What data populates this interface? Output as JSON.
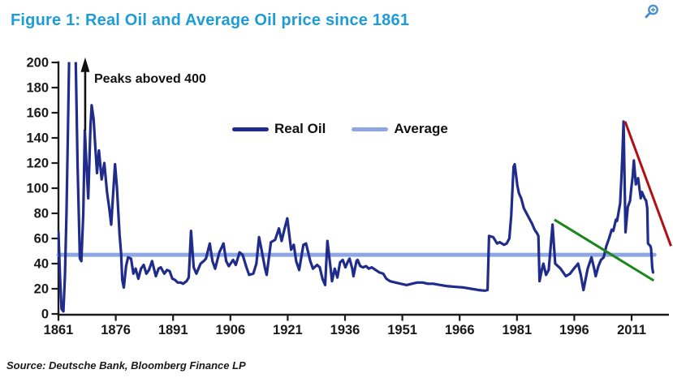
{
  "header": {
    "title": "Figure 1: Real Oil and Average Oil price since 1861"
  },
  "footer": {
    "source": "Source: Deutsche Bank, Bloomberg Finance LP"
  },
  "colors": {
    "title_blue": "#1E9CD8",
    "real_oil_navy": "#1F2C8B",
    "average_light_blue": "#8EA7E2",
    "trend_red": "#B11116",
    "trend_green": "#1D851D",
    "axis_black": "#1A1A1A",
    "zoom_icon_blue": "#4A90CC"
  },
  "chart_data": {
    "type": "line",
    "title": "Real Oil and Average Oil price since 1861",
    "xlabel": "",
    "ylabel": "",
    "x_axis": {
      "min": 1861,
      "max": 2020,
      "tick_step": 15,
      "ticks": [
        1861,
        1876,
        1891,
        1906,
        1921,
        1936,
        1951,
        1966,
        1981,
        1996,
        2011
      ]
    },
    "y_axis": {
      "min": 0,
      "max": 200,
      "tick_step": 20,
      "ticks": [
        0,
        20,
        40,
        60,
        80,
        100,
        120,
        140,
        160,
        180,
        200
      ]
    },
    "grid": false,
    "legend": {
      "position": "top-center",
      "entries": [
        {
          "label": "Real Oil",
          "color": "#1F2C8B"
        },
        {
          "label": "Average",
          "color": "#8EA7E2"
        }
      ]
    },
    "annotation": {
      "text": "Peaks aboved 400",
      "arrow": {
        "year": 1868,
        "from_value": 146,
        "to_value": 204
      }
    },
    "series": [
      {
        "name": "Real Oil",
        "type": "line",
        "color": "#1F2C8B",
        "clip_at_y_max": true,
        "points": [
          [
            1861,
            65
          ],
          [
            1861.4,
            30
          ],
          [
            1861.8,
            4
          ],
          [
            1862.3,
            2
          ],
          [
            1862.7,
            30
          ],
          [
            1863.1,
            80
          ],
          [
            1863.5,
            150
          ],
          [
            1863.8,
            205
          ],
          [
            1865.5,
            205
          ],
          [
            1866,
            120
          ],
          [
            1866.6,
            44
          ],
          [
            1867,
            42
          ],
          [
            1867.5,
            80
          ],
          [
            1867.9,
            146
          ],
          [
            1868.4,
            115
          ],
          [
            1868.8,
            92
          ],
          [
            1869.4,
            150
          ],
          [
            1869.7,
            166
          ],
          [
            1870.2,
            155
          ],
          [
            1870.7,
            130
          ],
          [
            1871.1,
            112
          ],
          [
            1871.6,
            130
          ],
          [
            1872.3,
            107
          ],
          [
            1873,
            120
          ],
          [
            1873.7,
            97
          ],
          [
            1874.3,
            84
          ],
          [
            1874.8,
            71
          ],
          [
            1875.3,
            95
          ],
          [
            1875.8,
            119
          ],
          [
            1876.3,
            101
          ],
          [
            1877,
            63
          ],
          [
            1877.4,
            48
          ],
          [
            1877.7,
            27
          ],
          [
            1878.1,
            21
          ],
          [
            1878.7,
            38
          ],
          [
            1879.2,
            45
          ],
          [
            1880,
            44
          ],
          [
            1880.6,
            32
          ],
          [
            1881.2,
            36
          ],
          [
            1881.9,
            28
          ],
          [
            1882.6,
            36
          ],
          [
            1883.3,
            39
          ],
          [
            1884,
            32
          ],
          [
            1884.7,
            35
          ],
          [
            1885.5,
            42
          ],
          [
            1886.5,
            30
          ],
          [
            1887.2,
            36
          ],
          [
            1887.8,
            37
          ],
          [
            1888.7,
            32
          ],
          [
            1889.4,
            35
          ],
          [
            1890.1,
            34
          ],
          [
            1890.8,
            28
          ],
          [
            1891.5,
            27
          ],
          [
            1892.2,
            25
          ],
          [
            1893,
            25
          ],
          [
            1893.6,
            24
          ],
          [
            1894.5,
            26
          ],
          [
            1895.1,
            29
          ],
          [
            1895.7,
            66
          ],
          [
            1896.4,
            37
          ],
          [
            1897.1,
            32
          ],
          [
            1898.2,
            40
          ],
          [
            1899,
            42
          ],
          [
            1899.6,
            44
          ],
          [
            1900.6,
            56
          ],
          [
            1901.3,
            42
          ],
          [
            1902,
            36
          ],
          [
            1903.1,
            49
          ],
          [
            1904.2,
            56
          ],
          [
            1904.9,
            42
          ],
          [
            1905.6,
            38
          ],
          [
            1906.7,
            43
          ],
          [
            1907.4,
            39
          ],
          [
            1908.4,
            49
          ],
          [
            1909.2,
            47
          ],
          [
            1910.2,
            37
          ],
          [
            1910.9,
            31
          ],
          [
            1912,
            32
          ],
          [
            1912.8,
            40
          ],
          [
            1913.5,
            61
          ],
          [
            1914.1,
            52
          ],
          [
            1915,
            37
          ],
          [
            1915.5,
            31
          ],
          [
            1916.6,
            57
          ],
          [
            1917.7,
            59
          ],
          [
            1918.7,
            68
          ],
          [
            1919.4,
            58
          ],
          [
            1920.2,
            68
          ],
          [
            1920.9,
            76
          ],
          [
            1921.9,
            51
          ],
          [
            1922.6,
            55
          ],
          [
            1923.2,
            42
          ],
          [
            1924,
            35
          ],
          [
            1925.1,
            55
          ],
          [
            1925.8,
            56
          ],
          [
            1926.9,
            42
          ],
          [
            1927.6,
            36
          ],
          [
            1928.7,
            39
          ],
          [
            1929.4,
            37
          ],
          [
            1930.1,
            28
          ],
          [
            1930.8,
            23
          ],
          [
            1931.4,
            58
          ],
          [
            1932.2,
            37
          ],
          [
            1932.6,
            26
          ],
          [
            1933.3,
            36
          ],
          [
            1934,
            29
          ],
          [
            1934.7,
            41
          ],
          [
            1935.4,
            43
          ],
          [
            1936.1,
            37
          ],
          [
            1936.8,
            42
          ],
          [
            1937.2,
            44
          ],
          [
            1937.9,
            36
          ],
          [
            1938.2,
            30
          ],
          [
            1939,
            42
          ],
          [
            1939.3,
            43
          ],
          [
            1940,
            38
          ],
          [
            1940.7,
            37
          ],
          [
            1941.5,
            38
          ],
          [
            1942.2,
            36
          ],
          [
            1943,
            37
          ],
          [
            1944,
            35
          ],
          [
            1945,
            33
          ],
          [
            1946,
            32
          ],
          [
            1946.8,
            28
          ],
          [
            1947.8,
            26
          ],
          [
            1949.2,
            25
          ],
          [
            1950.6,
            24
          ],
          [
            1952.1,
            23
          ],
          [
            1953.5,
            24
          ],
          [
            1954.9,
            25
          ],
          [
            1956.3,
            25
          ],
          [
            1957.7,
            24
          ],
          [
            1959.1,
            24
          ],
          [
            1961,
            23
          ],
          [
            1963,
            22
          ],
          [
            1965,
            21.5
          ],
          [
            1967,
            21
          ],
          [
            1969,
            20
          ],
          [
            1971,
            19
          ],
          [
            1972.6,
            18.5
          ],
          [
            1973.3,
            19
          ],
          [
            1973.7,
            62
          ],
          [
            1974.8,
            61
          ],
          [
            1975.8,
            56
          ],
          [
            1976.5,
            57
          ],
          [
            1977.6,
            55
          ],
          [
            1978.3,
            56
          ],
          [
            1979,
            60
          ],
          [
            1979.5,
            78
          ],
          [
            1980.1,
            117
          ],
          [
            1980.4,
            119
          ],
          [
            1981.1,
            102
          ],
          [
            1981.5,
            96
          ],
          [
            1982.1,
            92
          ],
          [
            1982.8,
            84
          ],
          [
            1983.5,
            80
          ],
          [
            1984.2,
            76
          ],
          [
            1984.9,
            72
          ],
          [
            1985.6,
            67
          ],
          [
            1986.3,
            64
          ],
          [
            1986.6,
            62
          ],
          [
            1986.9,
            26
          ],
          [
            1987.5,
            35
          ],
          [
            1987.9,
            40
          ],
          [
            1988.6,
            31
          ],
          [
            1989.3,
            35
          ],
          [
            1990.3,
            71
          ],
          [
            1991,
            40
          ],
          [
            1991.7,
            38
          ],
          [
            1992.4,
            36
          ],
          [
            1993.1,
            33
          ],
          [
            1993.8,
            30
          ],
          [
            1994.9,
            32
          ],
          [
            1995.9,
            36
          ],
          [
            1997,
            40
          ],
          [
            1997.7,
            31
          ],
          [
            1998.4,
            19
          ],
          [
            1999.5,
            36
          ],
          [
            2000.5,
            45
          ],
          [
            2001.2,
            36
          ],
          [
            2001.6,
            30
          ],
          [
            2002.3,
            38
          ],
          [
            2003,
            43
          ],
          [
            2003.7,
            45
          ],
          [
            2004.4,
            54
          ],
          [
            2005.1,
            60
          ],
          [
            2005.8,
            67
          ],
          [
            2006.2,
            66
          ],
          [
            2006.9,
            75
          ],
          [
            2007.2,
            74
          ],
          [
            2008,
            88
          ],
          [
            2008.3,
            106
          ],
          [
            2008.6,
            127
          ],
          [
            2008.9,
            153
          ],
          [
            2009.4,
            65
          ],
          [
            2010,
            85
          ],
          [
            2010.6,
            90
          ],
          [
            2010.9,
            99
          ],
          [
            2011.3,
            110
          ],
          [
            2011.6,
            122
          ],
          [
            2012.1,
            103
          ],
          [
            2012.7,
            108
          ],
          [
            2013.4,
            92
          ],
          [
            2013.7,
            97
          ],
          [
            2014.4,
            92
          ],
          [
            2014.8,
            90
          ],
          [
            2015.1,
            84
          ],
          [
            2015.3,
            56
          ],
          [
            2015.9,
            54
          ],
          [
            2016.1,
            52
          ],
          [
            2016.4,
            37
          ],
          [
            2016.6,
            33
          ]
        ]
      },
      {
        "name": "Average",
        "type": "hline",
        "color": "#8EA7E2",
        "value": 47,
        "start_year": 1861,
        "end_year": 2017
      }
    ],
    "trendlines": [
      {
        "name": "red-resistance-line",
        "color": "#B11116",
        "from": [
          2009.3,
          153
        ],
        "to": [
          2021.3,
          54
        ]
      },
      {
        "name": "green-support-line",
        "color": "#1D851D",
        "from": [
          1990.8,
          75
        ],
        "to": [
          2016.8,
          26.5
        ]
      }
    ]
  }
}
